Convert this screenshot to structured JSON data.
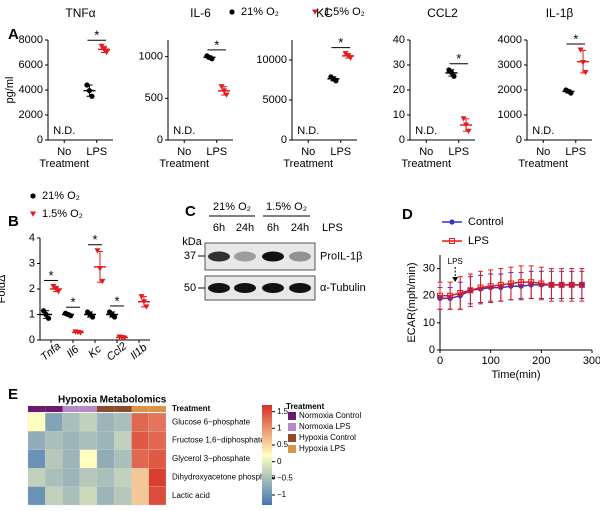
{
  "chart_data": [
    {
      "type": "dot",
      "panel": "A",
      "title": "TNFα",
      "ylabel": "pg/ml",
      "categories": [
        "No Treatment",
        "LPS"
      ],
      "nd_label": "N.D.",
      "significance": "*",
      "ylim": [
        0,
        8000
      ],
      "yticks": [
        0,
        2000,
        4000,
        6000,
        8000
      ],
      "series": [
        {
          "name": "21% O₂",
          "color": "#000000",
          "marker": "circle",
          "values": [
            null,
            [
              4400,
              3950,
              3500
            ]
          ]
        },
        {
          "name": "1.5% O₂",
          "color": "#e41a1c",
          "marker": "triangle-down",
          "values": [
            null,
            [
              7500,
              7250,
              7000
            ]
          ]
        }
      ]
    },
    {
      "type": "dot",
      "title": "IL-6",
      "categories": [
        "No Treatment",
        "LPS"
      ],
      "nd_label": "N.D.",
      "significance": "*",
      "ylim": [
        0,
        1200
      ],
      "yticks": [
        0,
        500,
        1000
      ],
      "series": [
        {
          "color": "#000000",
          "marker": "circle",
          "values": [
            null,
            [
              1010,
              990,
              975
            ]
          ]
        },
        {
          "color": "#e41a1c",
          "marker": "triangle-down",
          "values": [
            null,
            [
              640,
              590,
              540
            ]
          ]
        }
      ]
    },
    {
      "type": "dot",
      "title": "KC",
      "categories": [
        "No Treatment",
        "LPS"
      ],
      "nd_label": "N.D.",
      "significance": "*",
      "ylim": [
        0,
        12500
      ],
      "yticks": [
        0,
        5000,
        10000
      ],
      "series": [
        {
          "color": "#000000",
          "marker": "circle",
          "values": [
            null,
            [
              7900,
              7650,
              7400
            ]
          ]
        },
        {
          "color": "#e41a1c",
          "marker": "triangle-down",
          "values": [
            null,
            [
              10800,
              10500,
              10250
            ]
          ]
        }
      ]
    },
    {
      "type": "dot",
      "title": "CCL2",
      "categories": [
        "No Treatment",
        "LPS"
      ],
      "nd_label": "N.D.",
      "significance": "*",
      "ylim": [
        0,
        40
      ],
      "yticks": [
        0,
        10,
        20,
        30,
        40
      ],
      "series": [
        {
          "color": "#000000",
          "marker": "circle",
          "values": [
            null,
            [
              28,
              27,
              25.5
            ]
          ]
        },
        {
          "color": "#e41a1c",
          "marker": "triangle-down",
          "values": [
            null,
            [
              8.5,
              6,
              3.5
            ]
          ]
        }
      ]
    },
    {
      "type": "dot",
      "title": "IL-1β",
      "categories": [
        "No Treatment",
        "LPS"
      ],
      "nd_label": "N.D.",
      "significance": "*",
      "ylim": [
        0,
        4000
      ],
      "yticks": [
        0,
        1000,
        2000,
        3000,
        4000
      ],
      "series": [
        {
          "color": "#000000",
          "marker": "circle",
          "values": [
            null,
            [
              2000,
              1950,
              1880
            ]
          ]
        },
        {
          "color": "#e41a1c",
          "marker": "triangle-down",
          "values": [
            null,
            [
              3600,
              3100,
              2700
            ]
          ]
        }
      ]
    },
    {
      "type": "dot",
      "panel": "B",
      "ylabel": "FoldΔ",
      "category_style": "italic",
      "categories": [
        "Tnfa",
        "Il6",
        "Kc",
        "Ccl2",
        "Il1b"
      ],
      "significance": [
        "*",
        "*",
        "*",
        "*",
        null
      ],
      "ylim": [
        0,
        4
      ],
      "yticks": [
        0,
        1,
        2,
        3,
        4
      ],
      "series": [
        {
          "name": "21% O₂",
          "color": "#000000",
          "marker": "circle",
          "values": [
            [
              1.15,
              1.0,
              0.85
            ],
            [
              1.05,
              1.0,
              0.95
            ],
            [
              1.1,
              1.0,
              0.9
            ],
            [
              1.1,
              1.0,
              0.9
            ],
            null
          ]
        },
        {
          "name": "1.5% O₂",
          "color": "#e41a1c",
          "marker": "triangle-down",
          "values": [
            [
              2.1,
              2.0,
              1.9
            ],
            [
              0.32,
              0.3,
              0.28
            ],
            [
              3.5,
              2.8,
              2.3
            ],
            [
              0.12,
              0.1,
              0.08
            ],
            [
              1.7,
              1.5,
              1.3
            ]
          ]
        }
      ]
    },
    {
      "type": "blot",
      "panel": "C",
      "size_unit": "kDa",
      "mw_markers": [
        37,
        50
      ],
      "groups": [
        "21% O₂",
        "1.5% O₂"
      ],
      "lanes": [
        "6h",
        "24h",
        "6h",
        "24h"
      ],
      "treatment": "LPS",
      "bands": [
        {
          "name": "ProIL-1β",
          "intensities": [
            0.85,
            0.35,
            1.0,
            0.4
          ]
        },
        {
          "name": "α-Tubulin",
          "intensities": [
            1,
            1,
            1,
            1
          ]
        }
      ]
    },
    {
      "type": "line",
      "panel": "D",
      "xlabel": "Time(min)",
      "ylabel": "ECAR(mph/min)",
      "annotation": "LPS",
      "annotation_x": 30,
      "xlim": [
        0,
        300
      ],
      "xticks": [
        0,
        100,
        200,
        300
      ],
      "ylim": [
        0,
        35
      ],
      "yticks": [
        0,
        10,
        20,
        30
      ],
      "x": [
        0,
        20,
        40,
        60,
        80,
        100,
        120,
        140,
        160,
        180,
        200,
        220,
        240,
        260,
        280
      ],
      "series": [
        {
          "name": "Control",
          "color": "#3333cc",
          "marker": "circle",
          "values": [
            19,
            19,
            20,
            22,
            22.5,
            23,
            23,
            23.5,
            23.5,
            24,
            24,
            24,
            24,
            24,
            24
          ],
          "errors": [
            4,
            4,
            5,
            5,
            5,
            5,
            5,
            5,
            5,
            5,
            5,
            5,
            5,
            5,
            5
          ]
        },
        {
          "name": "LPS",
          "color": "#e41a1c",
          "marker": "square",
          "values": [
            20,
            20,
            21,
            22,
            23,
            23.5,
            24,
            24.5,
            25,
            25,
            24.5,
            24,
            24,
            24,
            24
          ],
          "errors": [
            5,
            5,
            6,
            6,
            6,
            6,
            6,
            6,
            6,
            6,
            6,
            6,
            6,
            6,
            6
          ]
        }
      ]
    },
    {
      "type": "heatmap",
      "panel": "E",
      "title": "Hypoxia Metabolomics",
      "annotation_label": "Treatment",
      "legend_title": "Treatment",
      "rows": [
        "Glucose 6−phosphate",
        "Fructose 1,6−diphosphate",
        "Glycerol 3−phosphate",
        "Dihydroxyacetone phosphate",
        "Lactic acid"
      ],
      "matrix": [
        [
          0.2,
          -0.8,
          -0.5,
          -0.3,
          -0.6,
          -0.5,
          1.3,
          1.2
        ],
        [
          -0.7,
          -0.5,
          -0.6,
          -0.5,
          -0.6,
          -0.3,
          1.4,
          1.3
        ],
        [
          -1,
          -0.4,
          -0.6,
          0.2,
          -0.7,
          -0.5,
          1.3,
          1.4
        ],
        [
          -0.3,
          -0.5,
          -0.6,
          -0.4,
          -0.5,
          -0.3,
          0.6,
          1.6
        ],
        [
          -1,
          -0.3,
          -0.5,
          -0.2,
          -0.6,
          -0.4,
          0.6,
          1.5
        ]
      ],
      "column_groups": [
        0,
        0,
        1,
        1,
        2,
        2,
        3,
        3
      ],
      "groups": [
        {
          "name": "Normoxia Control",
          "color": "#6a1b6e"
        },
        {
          "name": "Normoxia LPS",
          "color": "#b58ac6"
        },
        {
          "name": "Hypoxia Control",
          "color": "#8c4a2f"
        },
        {
          "name": "Hypoxia LPS",
          "color": "#d9944a"
        }
      ],
      "colors": [
        "#4575b4",
        "#ffffbf",
        "#d73027"
      ],
      "zlim": [
        -1.3,
        1.7
      ],
      "zticks": [
        1.5,
        1,
        0.5,
        0,
        {
          "value": -0.5,
          "label": "−0.5"
        },
        {
          "value": -1,
          "label": "−1"
        }
      ]
    }
  ]
}
